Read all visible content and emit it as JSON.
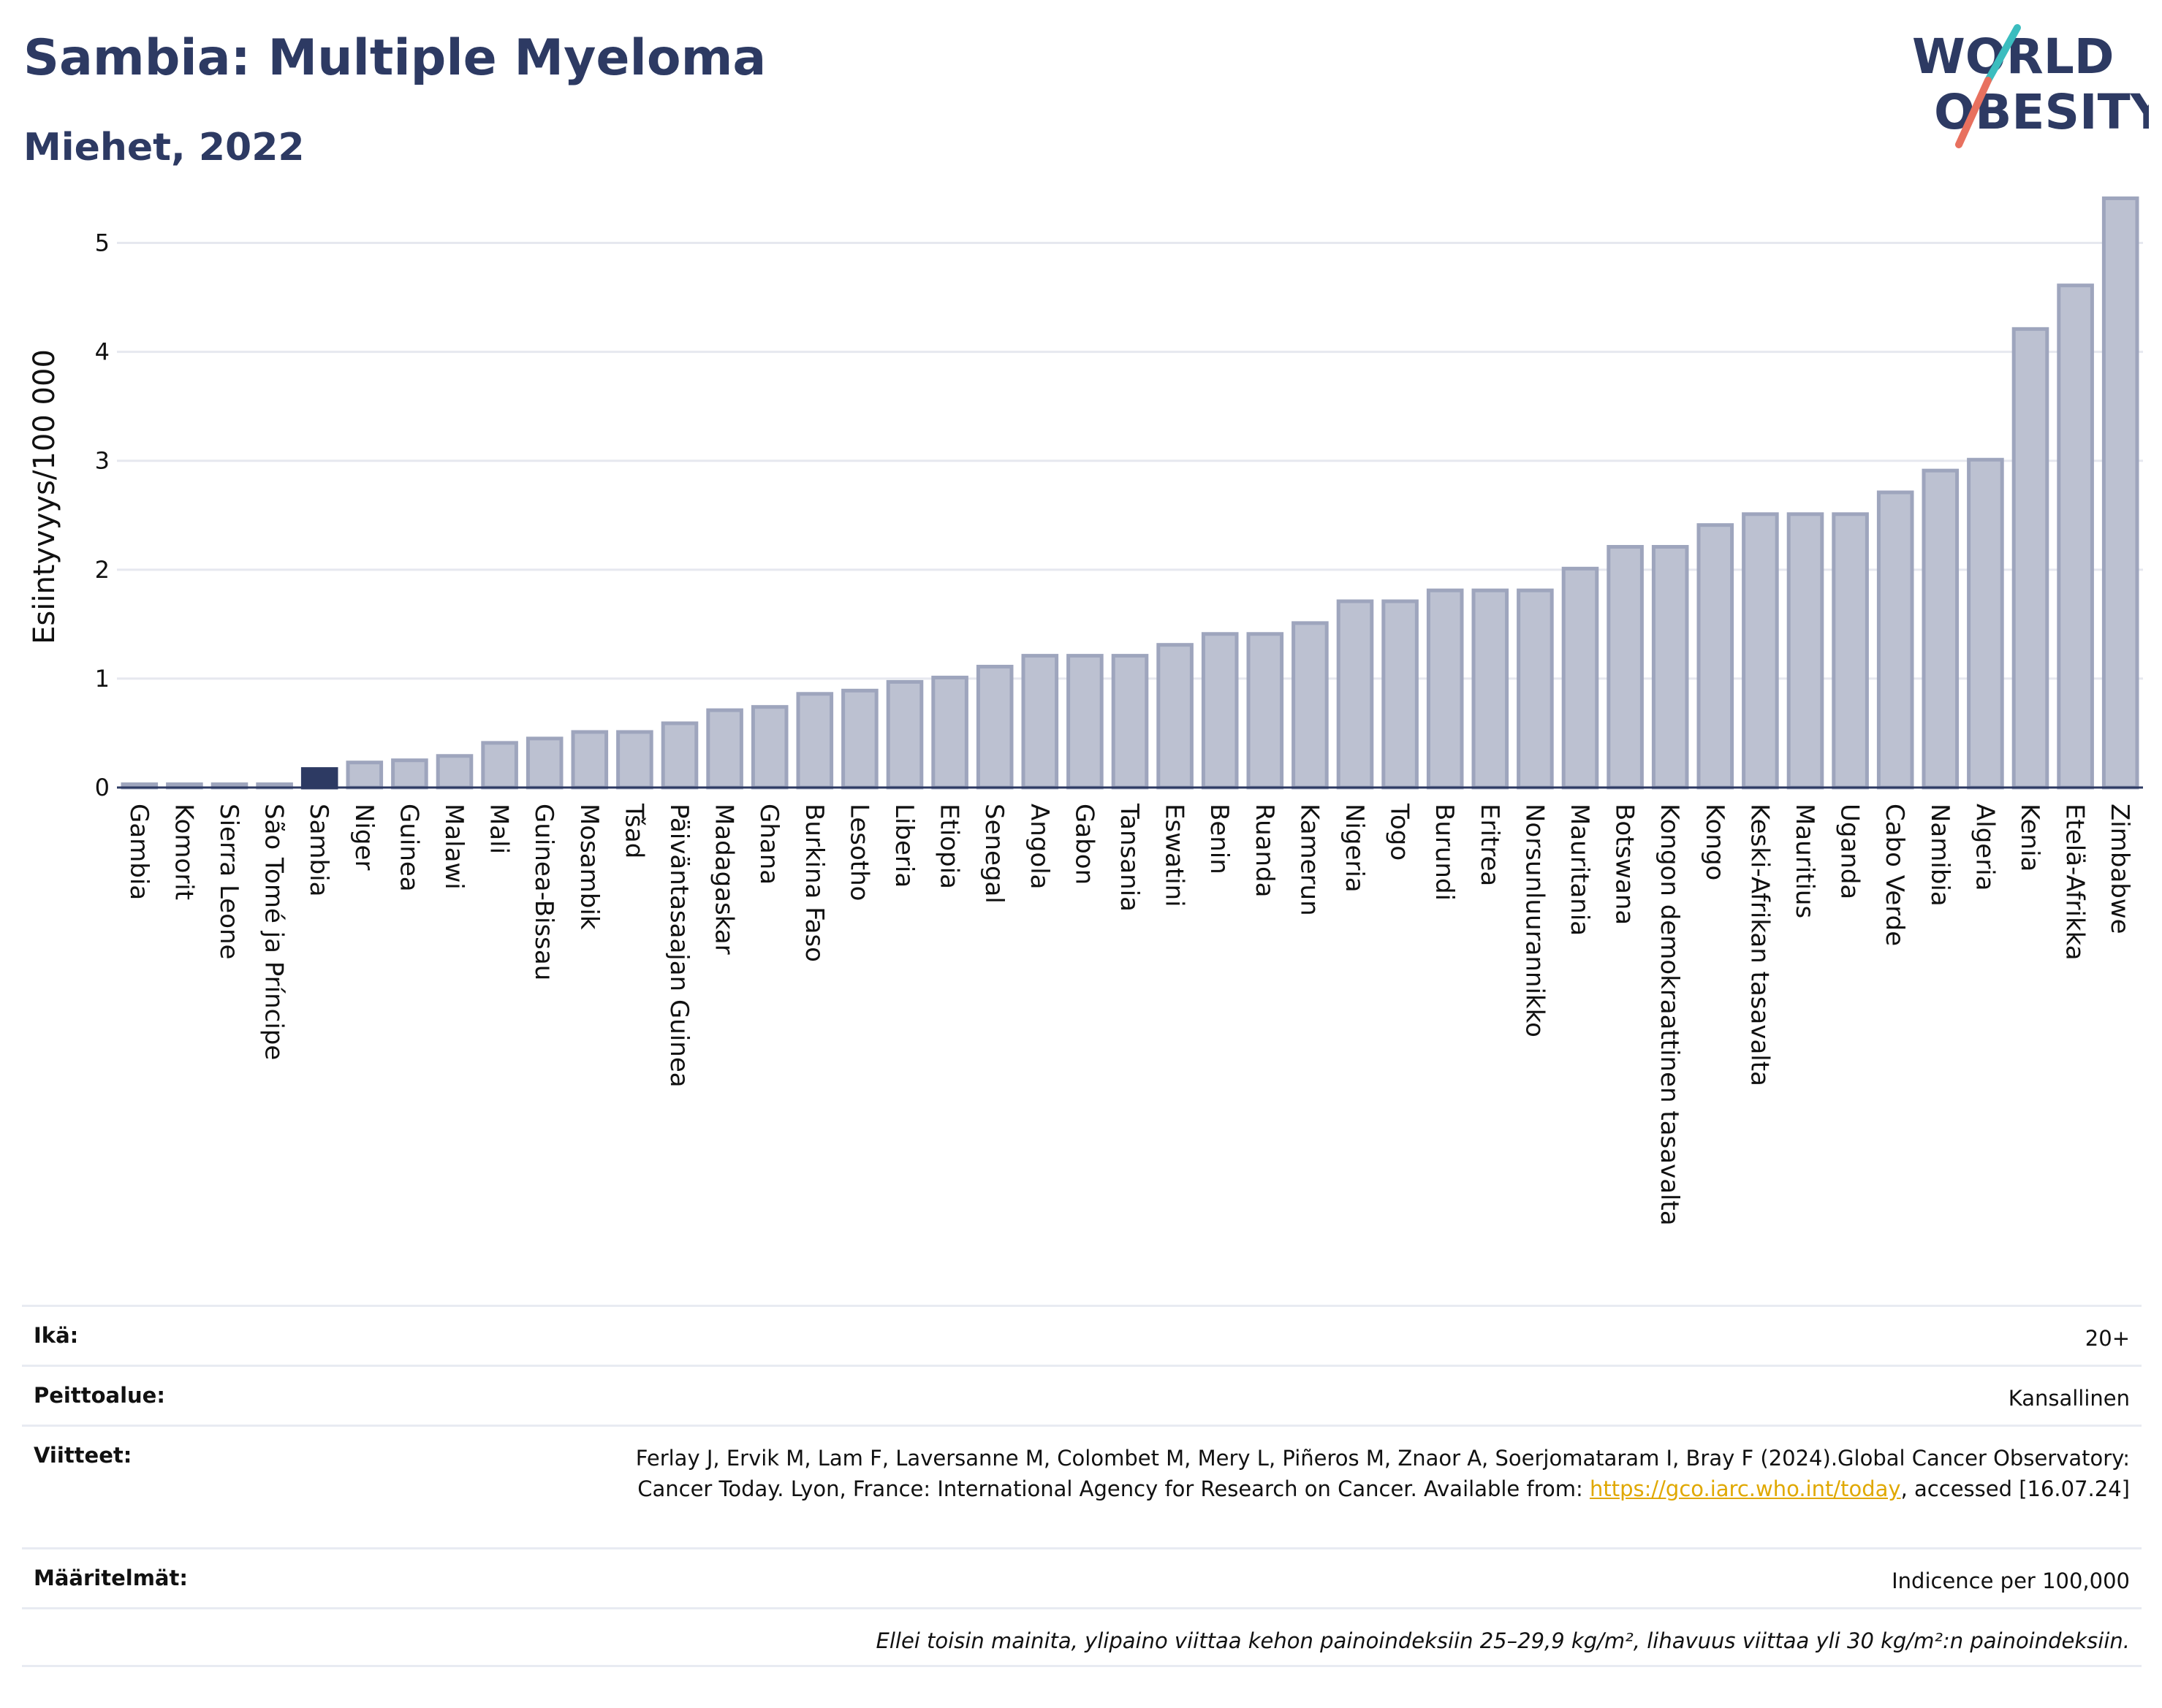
{
  "header": {
    "title": "Sambia: Multiple Myeloma",
    "subtitle": "Miehet, 2022",
    "logo_line1": "WORLD",
    "logo_line2": "OBESITY"
  },
  "colors": {
    "bar_default": "#bcc1d1",
    "bar_default_edge": "#9ea5bd",
    "bar_highlight": "#2d3a63",
    "title": "#2d3a63",
    "logo_teal": "#3bbdbf",
    "logo_coral": "#e8715f"
  },
  "chart_data": {
    "type": "bar",
    "title": "Sambia: Multiple Myeloma",
    "ylabel": "Esiintyvyys/100 000",
    "xlabel": "",
    "ylim": [
      0,
      5.5
    ],
    "yticks": [
      0,
      1,
      2,
      3,
      4,
      5
    ],
    "grid": true,
    "highlight": "Sambia",
    "categories": [
      "Gambia",
      "Komorit",
      "Sierra Leone",
      "São Tomé ja Príncipe",
      "Sambia",
      "Niger",
      "Guinea",
      "Malawi",
      "Mali",
      "Guinea-Bissau",
      "Mosambik",
      "Tšad",
      "Päiväntasaajan Guinea",
      "Madagaskar",
      "Ghana",
      "Burkina Faso",
      "Lesotho",
      "Liberia",
      "Etiopia",
      "Senegal",
      "Angola",
      "Gabon",
      "Tansania",
      "Eswatini",
      "Benin",
      "Ruanda",
      "Kamerun",
      "Nigeria",
      "Togo",
      "Burundi",
      "Eritrea",
      "Norsunluurannikko",
      "Mauritania",
      "Botswana",
      "Kongon demokraattinen tasavalta",
      "Kongo",
      "Keski-Afrikan tasavalta",
      "Mauritius",
      "Uganda",
      "Cabo Verde",
      "Namibia",
      "Algeria",
      "Kenia",
      "Etelä-Afrikka",
      "Zimbabwe"
    ],
    "values": [
      0.03,
      0.03,
      0.03,
      0.03,
      0.17,
      0.23,
      0.25,
      0.29,
      0.41,
      0.45,
      0.51,
      0.51,
      0.59,
      0.71,
      0.74,
      0.86,
      0.89,
      0.97,
      1.01,
      1.11,
      1.21,
      1.21,
      1.21,
      1.31,
      1.41,
      1.41,
      1.51,
      1.71,
      1.71,
      1.81,
      1.81,
      1.81,
      2.01,
      2.21,
      2.21,
      2.41,
      2.51,
      2.51,
      2.51,
      2.71,
      2.91,
      3.01,
      4.21,
      4.61,
      5.41
    ]
  },
  "info": {
    "age_label": "Ikä:",
    "age_value": "20+",
    "coverage_label": "Peittoalue:",
    "coverage_value": "Kansallinen",
    "refs_label": "Viitteet:",
    "refs_text1": "Ferlay J, Ervik M, Lam F, Laversanne M, Colombet M, Mery L, Piñeros M, Znaor A, Soerjomataram I, Bray F (2024).Global Cancer Observatory: Cancer Today. Lyon, France: International Agency for Research on Cancer. Available from: ",
    "refs_link": "https://gco.iarc.who.int/today",
    "refs_text2": ", accessed [16.07.24]",
    "defs_label": "Määritelmät:",
    "defs_value": "Indicence per 100,000",
    "note": "Ellei toisin mainita, ylipaino viittaa kehon painoindeksiin 25–29,9 kg/m², lihavuus viittaa yli 30 kg/m²:n painoindeksiin."
  }
}
